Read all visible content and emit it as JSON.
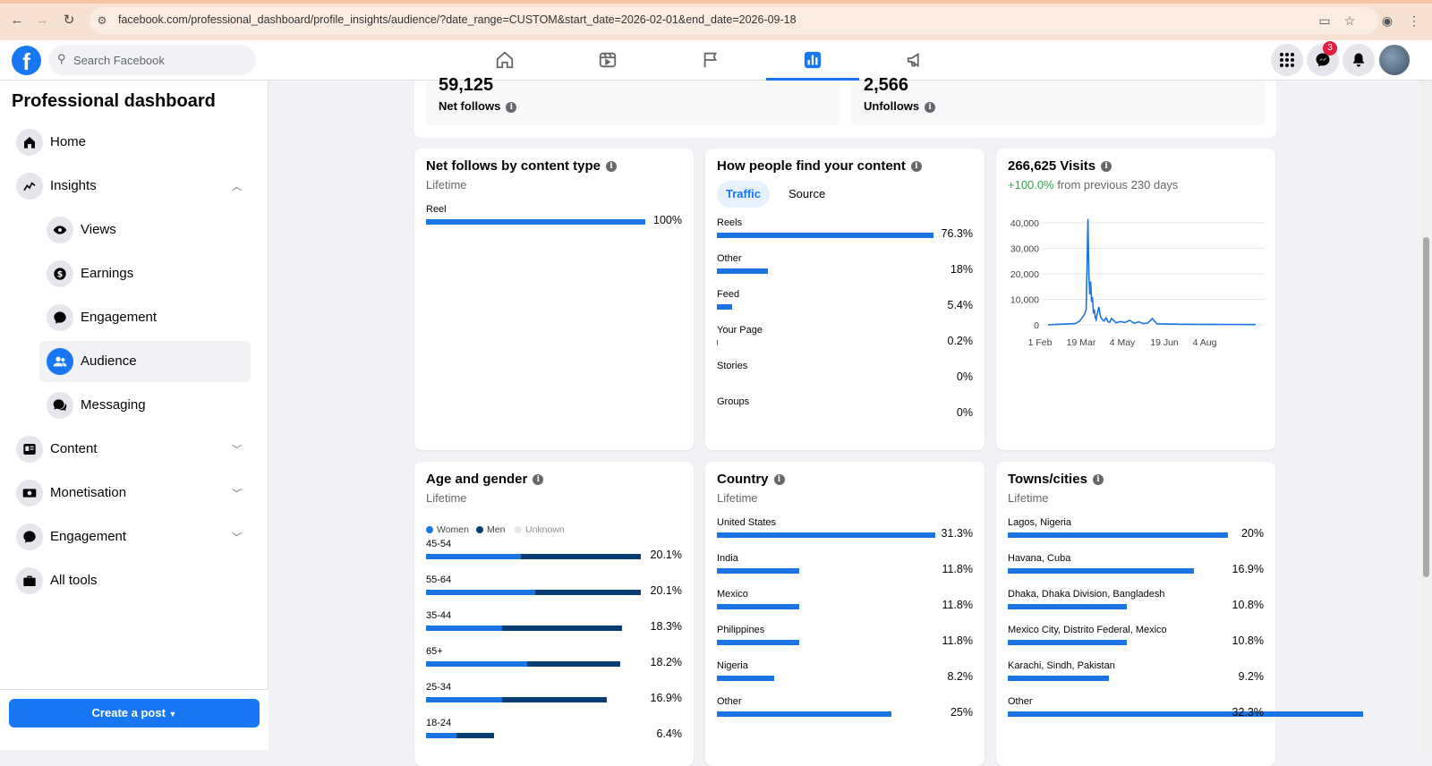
{
  "browser": {
    "url": "facebook.com/professional_dashboard/profile_insights/audience/?date_range=CUSTOM&start_date=2026-02-01&end_date=2026-09-18"
  },
  "header": {
    "logo": "f",
    "search_placeholder": "Search Facebook",
    "messenger_badge": "3",
    "nav": [
      "home-icon",
      "video-icon",
      "flag-icon",
      "insights-icon",
      "megaphone-icon"
    ],
    "active_nav": "insights-icon"
  },
  "sidebar": {
    "title": "Professional dashboard",
    "home": "Home",
    "insights": "Insights",
    "views": "Views",
    "earnings": "Earnings",
    "engagement_sub": "Engagement",
    "audience": "Audience",
    "messaging": "Messaging",
    "content": "Content",
    "monetisation": "Monetisation",
    "engagement": "Engagement",
    "all_tools": "All tools",
    "create_post": "Create a post"
  },
  "stats": {
    "net_follows_value": "59,125",
    "net_follows_label": "Net follows",
    "unfollows_value": "2,566",
    "unfollows_label": "Unfollows"
  },
  "content_type": {
    "title": "Net follows by content type",
    "subtitle": "Lifetime",
    "rows": [
      {
        "label": "Reel",
        "pct": "100%",
        "value": 100
      }
    ]
  },
  "find_content": {
    "title": "How people find your content",
    "tabs": [
      "Traffic",
      "Source"
    ],
    "active_tab": "Traffic",
    "rows": [
      {
        "label": "Reels",
        "pct": "76.3%",
        "value": 76.3
      },
      {
        "label": "Other",
        "pct": "18%",
        "value": 18
      },
      {
        "label": "Feed",
        "pct": "5.4%",
        "value": 5.4
      },
      {
        "label": "Your Page",
        "pct": "0.2%",
        "value": 0.2
      },
      {
        "label": "Stories",
        "pct": "0%",
        "value": 0
      },
      {
        "label": "Groups",
        "pct": "0%",
        "value": 0
      }
    ]
  },
  "visits": {
    "title": "266,625 Visits",
    "change": "+100.0%",
    "change_suffix": "from previous 230 days",
    "change_color": "#31a24c"
  },
  "chart_data": {
    "type": "line",
    "title": "266,625 Visits",
    "x_ticks": [
      "1 Feb",
      "19 Mar",
      "4 May",
      "19 Jun",
      "4 Aug"
    ],
    "y_ticks": [
      "0",
      "10,000",
      "20,000",
      "30,000",
      "40,000"
    ],
    "ylim": [
      0,
      40000
    ],
    "grid": true,
    "series": [
      {
        "x": [
          0,
          10,
          20,
          30,
          35,
          40,
          42,
          44,
          45,
          46,
          47,
          48,
          49,
          50,
          51,
          52,
          53,
          54,
          56,
          58,
          60,
          62,
          64,
          66,
          68,
          70,
          75,
          80,
          85,
          90,
          95,
          100,
          105,
          110,
          115,
          120,
          125,
          130,
          135,
          140,
          145,
          150,
          160,
          170,
          180,
          190,
          200,
          210,
          220,
          229
        ],
        "y": [
          0,
          200,
          300,
          500,
          1500,
          4000,
          6000,
          41500,
          20000,
          12000,
          17000,
          9000,
          11000,
          4500,
          6000,
          3000,
          2000,
          4000,
          7000,
          3000,
          2000,
          1500,
          2800,
          1200,
          1000,
          2500,
          800,
          1300,
          900,
          1800,
          600,
          1200,
          500,
          700,
          2500,
          400,
          300,
          400,
          250,
          300,
          200,
          250,
          200,
          150,
          200,
          150,
          150,
          150,
          120,
          100
        ]
      }
    ]
  },
  "age_gender": {
    "title": "Age and gender",
    "subtitle": "Lifetime",
    "legend": [
      "Women",
      "Men",
      "Unknown"
    ],
    "colors": {
      "women": "#1b74e4",
      "men": "#0a3d73",
      "unknown": "#e4e6eb"
    },
    "rows": [
      {
        "label": "45-54",
        "pct": "20.1%",
        "total": 20.1,
        "women_frac": 0.44
      },
      {
        "label": "55-64",
        "pct": "20.1%",
        "total": 20.1,
        "women_frac": 0.51
      },
      {
        "label": "35-44",
        "pct": "18.3%",
        "total": 18.3,
        "women_frac": 0.39
      },
      {
        "label": "65+",
        "pct": "18.2%",
        "total": 18.2,
        "women_frac": 0.52
      },
      {
        "label": "25-34",
        "pct": "16.9%",
        "total": 16.9,
        "women_frac": 0.42
      },
      {
        "label": "18-24",
        "pct": "6.4%",
        "total": 6.4,
        "women_frac": 0.45
      }
    ]
  },
  "country": {
    "title": "Country",
    "subtitle": "Lifetime",
    "rows": [
      {
        "label": "United States",
        "pct": "31.3%",
        "value": 31.3
      },
      {
        "label": "India",
        "pct": "11.8%",
        "value": 11.8
      },
      {
        "label": "Mexico",
        "pct": "11.8%",
        "value": 11.8
      },
      {
        "label": "Philippines",
        "pct": "11.8%",
        "value": 11.8
      },
      {
        "label": "Nigeria",
        "pct": "8.2%",
        "value": 8.2
      },
      {
        "label": "Other",
        "pct": "25%",
        "value": 25
      }
    ]
  },
  "towns": {
    "title": "Towns/cities",
    "subtitle": "Lifetime",
    "rows": [
      {
        "label": "Lagos, Nigeria",
        "pct": "20%",
        "value": 20
      },
      {
        "label": "Havana, Cuba",
        "pct": "16.9%",
        "value": 16.9
      },
      {
        "label": "Dhaka, Dhaka Division, Bangladesh",
        "pct": "10.8%",
        "value": 10.8
      },
      {
        "label": "Mexico City, Distrito Federal, Mexico",
        "pct": "10.8%",
        "value": 10.8
      },
      {
        "label": "Karachi, Sindh, Pakistan",
        "pct": "9.2%",
        "value": 9.2
      },
      {
        "label": "Other",
        "pct": "32.3%",
        "value": 32.3
      }
    ]
  }
}
